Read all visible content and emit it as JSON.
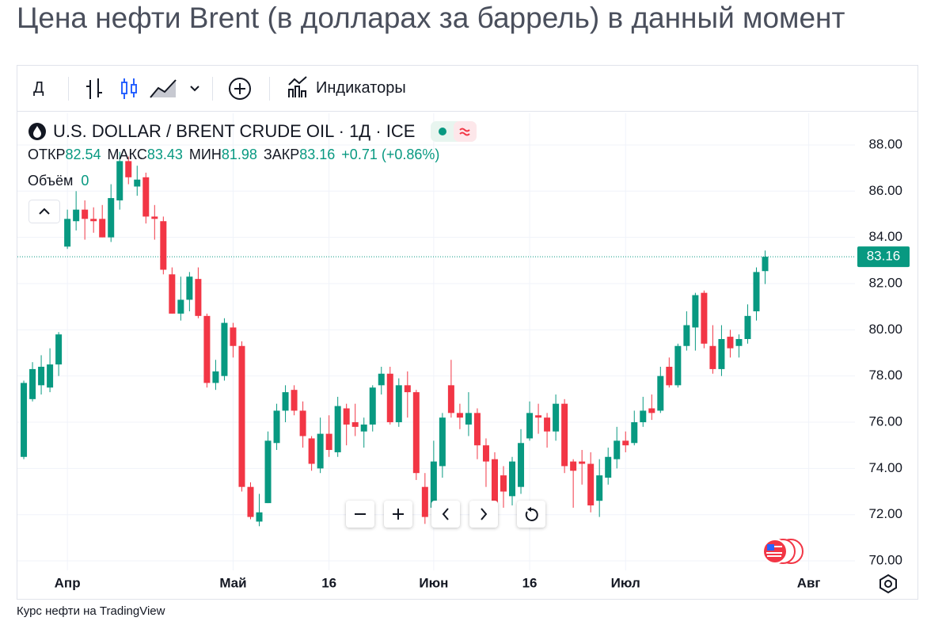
{
  "header": {
    "title": "Цена нефти Brent (в долларах за баррель) в данный момент"
  },
  "toolbar": {
    "interval": "Д",
    "indicators": "Индикаторы"
  },
  "chart_data": {
    "type": "candlestick",
    "title": "U.S. DOLLAR / BRENT CRUDE OIL · 1Д · ICE",
    "labels": {
      "open": "ОТКР",
      "high": "МАКС",
      "low": "МИН",
      "close": "ЗАКР"
    },
    "change": "+0.71 (+0.86%)",
    "volume_label": "Объём",
    "volume": 0,
    "open": [
      74.5,
      77.0,
      77.6,
      77.5,
      78.5,
      83.6,
      84.7,
      85.2,
      84.8,
      84.8,
      84.0,
      85.6,
      87.3,
      86.2,
      86.6,
      84.9,
      84.7,
      82.4,
      80.7,
      81.3,
      82.2,
      80.6,
      77.7,
      78.0,
      80.1,
      79.3,
      73.2,
      71.7,
      72.5,
      75.1,
      76.5,
      77.4,
      76.5,
      75.3,
      74.0,
      75.5,
      74.7,
      76.6,
      76.0,
      75.6,
      75.9,
      77.6,
      78.1,
      76.0,
      77.6,
      77.3,
      73.2,
      72.3,
      74.1,
      77.6,
      76.4,
      75.9,
      76.4,
      75.0,
      74.4,
      73.7,
      72.8,
      73.2,
      75.3,
      76.3,
      76.2,
      75.6,
      76.8,
      74.3,
      74.3,
      74.2,
      72.6,
      73.6,
      74.4,
      75.2,
      75.1,
      76.0,
      76.6,
      76.5,
      78.4,
      77.6,
      79.3,
      80.1,
      81.6,
      79.3,
      78.3,
      79.7,
      79.3,
      79.6,
      80.8,
      82.54
    ],
    "high": [
      77.8,
      78.6,
      78.9,
      79.2,
      79.9,
      85.2,
      86.0,
      85.6,
      85.3,
      85.4,
      86.3,
      87.7,
      87.5,
      87.1,
      86.8,
      85.4,
      84.9,
      82.7,
      82.3,
      82.5,
      82.7,
      80.7,
      78.7,
      80.5,
      80.3,
      79.5,
      73.4,
      72.9,
      75.6,
      76.8,
      77.6,
      77.6,
      76.9,
      75.4,
      76.2,
      76.3,
      77.1,
      76.8,
      76.8,
      76.2,
      77.6,
      78.4,
      78.4,
      77.9,
      78.2,
      77.4,
      73.8,
      75.2,
      76.4,
      78.7,
      76.8,
      77.3,
      76.6,
      75.3,
      74.7,
      74.1,
      74.5,
      75.7,
      76.9,
      76.8,
      76.4,
      77.2,
      77.0,
      74.4,
      74.8,
      74.7,
      74.4,
      74.9,
      75.8,
      75.6,
      76.5,
      77.1,
      77.2,
      78.4,
      78.8,
      79.4,
      80.8,
      81.6,
      81.7,
      80.2,
      80.2,
      80.0,
      79.8,
      81.1,
      82.7,
      83.43
    ],
    "low": [
      74.4,
      76.9,
      77.2,
      77.3,
      78.0,
      83.5,
      84.3,
      83.9,
      84.2,
      84.0,
      83.8,
      85.2,
      86.3,
      85.8,
      84.6,
      83.9,
      82.4,
      80.7,
      80.4,
      80.8,
      80.5,
      77.5,
      77.4,
      77.8,
      78.8,
      73.0,
      71.8,
      71.5,
      72.5,
      74.8,
      76.0,
      76.3,
      74.9,
      73.9,
      73.8,
      74.5,
      74.5,
      75.0,
      75.4,
      74.9,
      75.6,
      77.2,
      75.9,
      75.8,
      76.2,
      73.5,
      71.6,
      72.0,
      73.6,
      76.2,
      75.7,
      75.4,
      74.4,
      73.2,
      71.9,
      72.3,
      72.4,
      72.9,
      75.2,
      75.5,
      74.9,
      75.2,
      73.8,
      72.3,
      73.3,
      72.1,
      71.9,
      73.3,
      74.0,
      74.7,
      75.0,
      75.8,
      76.1,
      76.4,
      77.5,
      77.5,
      79.1,
      79.1,
      79.2,
      78.1,
      78.0,
      78.8,
      78.8,
      79.4,
      80.4,
      81.98
    ],
    "close": [
      77.7,
      78.3,
      78.4,
      78.5,
      79.8,
      84.8,
      85.2,
      84.8,
      84.7,
      84.0,
      85.7,
      87.3,
      86.6,
      86.5,
      84.9,
      84.8,
      82.6,
      80.7,
      81.3,
      82.3,
      80.6,
      77.7,
      78.2,
      80.3,
      79.3,
      73.2,
      71.9,
      72.1,
      75.2,
      76.5,
      77.3,
      76.5,
      75.4,
      74.2,
      75.5,
      74.8,
      76.7,
      75.9,
      75.8,
      75.9,
      77.5,
      78.1,
      76.0,
      77.6,
      77.3,
      73.8,
      71.9,
      74.3,
      76.2,
      76.4,
      76.2,
      76.4,
      75.0,
      74.3,
      72.1,
      73.0,
      74.3,
      75.1,
      76.4,
      76.2,
      75.6,
      76.8,
      74.1,
      73.9,
      74.2,
      72.4,
      73.7,
      74.5,
      75.2,
      75.0,
      76.0,
      76.5,
      76.4,
      78.0,
      77.6,
      79.3,
      80.2,
      81.5,
      79.4,
      78.3,
      79.6,
      79.2,
      79.6,
      80.6,
      82.5,
      83.16
    ],
    "up_color": "#089981",
    "down_color": "#f23645",
    "ylim": [
      69.59,
      89.37
    ],
    "yticks": [
      {
        "value": 70,
        "label": "70.00"
      },
      {
        "value": 72,
        "label": "72.00"
      },
      {
        "value": 74,
        "label": "74.00"
      },
      {
        "value": 76,
        "label": "76.00"
      },
      {
        "value": 78,
        "label": "78.00"
      },
      {
        "value": 80,
        "label": "80.00"
      },
      {
        "value": 82,
        "label": "82.00"
      },
      {
        "value": 84,
        "label": "84.00"
      },
      {
        "value": 86,
        "label": "86.00"
      },
      {
        "value": 88,
        "label": "88.00"
      }
    ],
    "xlim": [
      -0.73,
      95.3
    ],
    "xticks": [
      {
        "value": 5,
        "label": "Апр"
      },
      {
        "value": 24,
        "label": "Май"
      },
      {
        "value": 35,
        "label": "16"
      },
      {
        "value": 47,
        "label": "Июн"
      },
      {
        "value": 58,
        "label": "16"
      },
      {
        "value": 69,
        "label": "Июл"
      },
      {
        "value": 90,
        "label": "Авг"
      }
    ],
    "grid": true
  },
  "footer": "Курс нефти на TradingView"
}
